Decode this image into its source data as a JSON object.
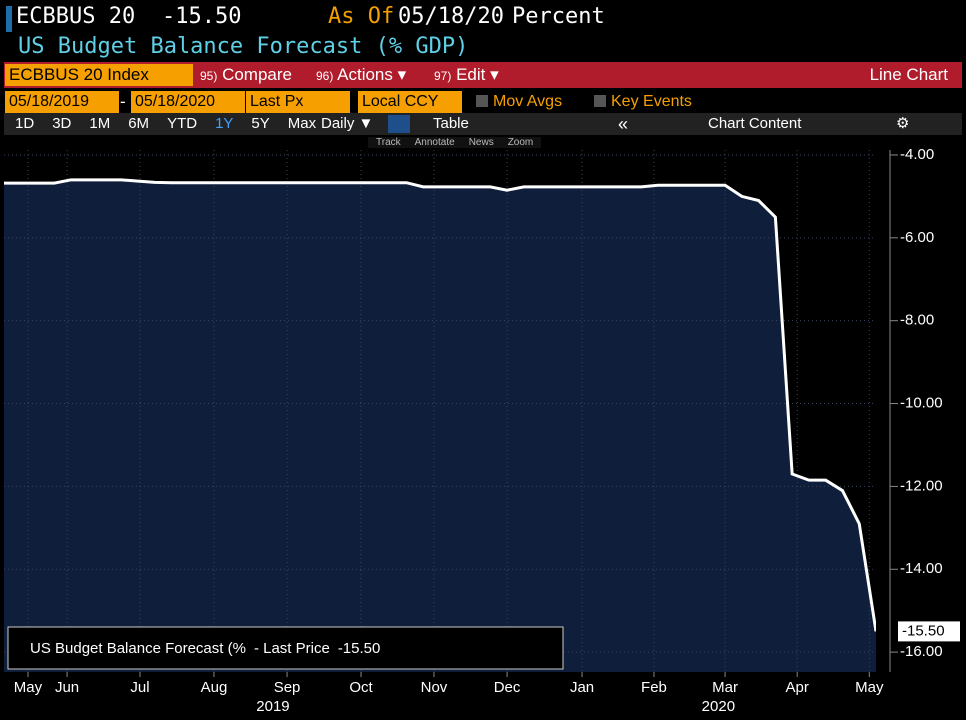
{
  "header": {
    "ticker": "ECBBUS 20",
    "price": "-15.50",
    "as_of": "As Of",
    "date": "05/18/20",
    "unit": "Percent",
    "subtitle": "US Budget Balance Forecast (% GDP)"
  },
  "toolbar": {
    "security": "ECBBUS 20 Index",
    "compare_num": "95)",
    "compare": "Compare",
    "actions_num": "96)",
    "actions": "Actions ▾",
    "edit_num": "97)",
    "edit": "Edit ▾",
    "view": "Line Chart",
    "start_date": "05/18/2019",
    "dash": "-",
    "end_date": "05/18/2020",
    "field": "Last Px",
    "currency": "Local CCY",
    "mov_avgs": "Mov Avgs",
    "key_events": "Key Events",
    "periods": [
      "1D",
      "3D",
      "1M",
      "6M",
      "YTD",
      "1Y",
      "5Y",
      "Max"
    ],
    "frequency": "Daily ▼",
    "table": "Table",
    "chart_content": "Chart Content",
    "tools": [
      "Track",
      "Annotate",
      "News",
      "Zoom"
    ]
  },
  "chart_data": {
    "type": "area",
    "color": "#ffffff",
    "fill": "#0f1e3b",
    "grid": true,
    "series": [
      {
        "name": "US Budget Balance Forecast (%",
        "values": [
          -4.68,
          -4.68,
          -4.68,
          -4.68,
          -4.6,
          -4.6,
          -4.6,
          -4.6,
          -4.63,
          -4.66,
          -4.67,
          -4.67,
          -4.67,
          -4.67,
          -4.67,
          -4.67,
          -4.67,
          -4.67,
          -4.67,
          -4.67,
          -4.67,
          -4.67,
          -4.67,
          -4.67,
          -4.67,
          -4.77,
          -4.77,
          -4.77,
          -4.77,
          -4.77,
          -4.85,
          -4.77,
          -4.77,
          -4.77,
          -4.77,
          -4.77,
          -4.77,
          -4.77,
          -4.77,
          -4.73,
          -4.73,
          -4.73,
          -4.73,
          -4.73,
          -5.0,
          -5.1,
          -5.5,
          -11.7,
          -11.85,
          -11.85,
          -12.1,
          -12.9,
          -15.5
        ]
      }
    ],
    "legend_extra": "- Last Price",
    "last_label": "-15.50",
    "xlim": [
      0,
      52
    ],
    "xticks": [
      {
        "value": 1.43,
        "label": "May"
      },
      {
        "value": 3.76,
        "label": "Jun"
      },
      {
        "value": 8.11,
        "label": "Jul"
      },
      {
        "value": 12.52,
        "label": "Aug"
      },
      {
        "value": 16.88,
        "label": "Sep"
      },
      {
        "value": 21.29,
        "label": "Oct"
      },
      {
        "value": 25.64,
        "label": "Nov"
      },
      {
        "value": 30.0,
        "label": "Dec"
      },
      {
        "value": 34.47,
        "label": "Jan"
      },
      {
        "value": 38.76,
        "label": "Feb"
      },
      {
        "value": 43.0,
        "label": "Mar"
      },
      {
        "value": 47.3,
        "label": "Apr"
      },
      {
        "value": 51.6,
        "label": "May"
      }
    ],
    "years": [
      {
        "value": 16.04,
        "label": "2019"
      },
      {
        "value": 42.6,
        "label": "2020"
      }
    ],
    "ylim": [
      -16.48,
      -3.88
    ],
    "yticks": [
      {
        "value": -4,
        "label": "-4.00"
      },
      {
        "value": -6,
        "label": "-6.00"
      },
      {
        "value": -8,
        "label": "-8.00"
      },
      {
        "value": -10,
        "label": "-10.00"
      },
      {
        "value": -12,
        "label": "-12.00"
      },
      {
        "value": -14,
        "label": "-14.00"
      },
      {
        "value": -16,
        "label": "-16.00"
      }
    ]
  }
}
